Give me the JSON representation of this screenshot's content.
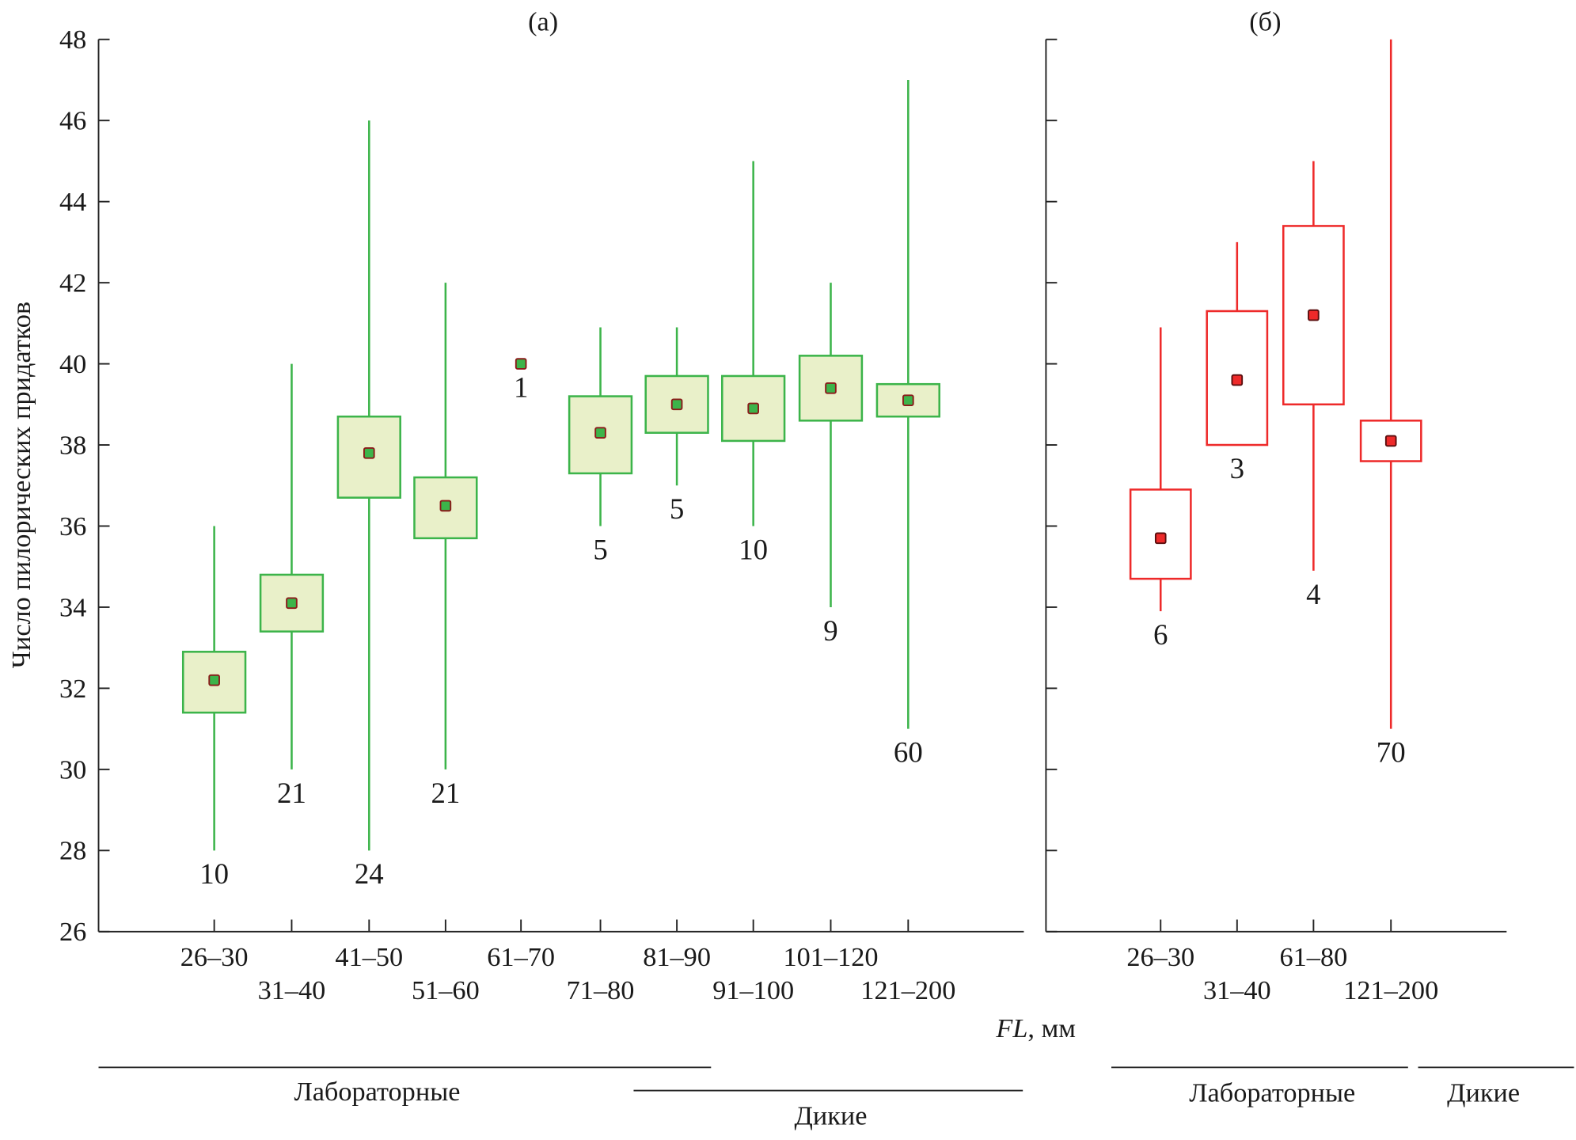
{
  "chart_data": [
    {
      "type": "box",
      "title": "(а)",
      "ylabel": "Число пилорических придатков",
      "xlabel": "FL, мм",
      "xlabel_italic_part": "FL",
      "xlabel_unit": ", мм",
      "ylim": [
        26,
        48
      ],
      "yticks": [
        26,
        28,
        30,
        32,
        34,
        36,
        38,
        40,
        42,
        44,
        46,
        48
      ],
      "colors": {
        "line": "#3cb44a",
        "fill": "#e9f0c9",
        "marker_fill": "#3cb44a",
        "marker_edge": "#8b1a1a"
      },
      "categories": [
        "26–30",
        "31–40",
        "41–50",
        "51–60",
        "61–70",
        "71–80",
        "81–90",
        "91–100",
        "101–120",
        "121–200"
      ],
      "series": [
        {
          "category": "26–30",
          "min": 28,
          "q1": 31.4,
          "mean": 32.2,
          "q3": 32.9,
          "max": 36,
          "n": "10"
        },
        {
          "category": "31–40",
          "min": 30,
          "q1": 33.4,
          "mean": 34.1,
          "q3": 34.8,
          "max": 40,
          "n": "21"
        },
        {
          "category": "41–50",
          "min": 28,
          "q1": 36.7,
          "mean": 37.8,
          "q3": 38.7,
          "max": 46,
          "n": "24"
        },
        {
          "category": "51–60",
          "min": 30,
          "q1": 35.7,
          "mean": 36.5,
          "q3": 37.2,
          "max": 42,
          "n": "21"
        },
        {
          "category": "61–70",
          "min": 40,
          "q1": 40,
          "mean": 40,
          "q3": 40,
          "max": 40,
          "n": "1"
        },
        {
          "category": "71–80",
          "min": 36,
          "q1": 37.3,
          "mean": 38.3,
          "q3": 39.2,
          "max": 40.9,
          "n": "5"
        },
        {
          "category": "81–90",
          "min": 37,
          "q1": 38.3,
          "mean": 39.0,
          "q3": 39.7,
          "max": 40.9,
          "n": "5"
        },
        {
          "category": "91–100",
          "min": 36,
          "q1": 38.1,
          "mean": 38.9,
          "q3": 39.7,
          "max": 45,
          "n": "10"
        },
        {
          "category": "101–120",
          "min": 34,
          "q1": 38.6,
          "mean": 39.4,
          "q3": 40.2,
          "max": 42,
          "n": "9"
        },
        {
          "category": "121–200",
          "min": 31,
          "q1": 38.7,
          "mean": 39.1,
          "q3": 39.5,
          "max": 47,
          "n": "60"
        }
      ],
      "groups": [
        "Лабораторные",
        "Дикие"
      ]
    },
    {
      "type": "box",
      "title": "(б)",
      "ylim": [
        26,
        48
      ],
      "colors": {
        "line": "#ee2a2a",
        "fill": "#ffffff",
        "marker_fill": "#ee2a2a",
        "marker_edge": "#5a0e0e"
      },
      "categories": [
        "26–30",
        "31–40",
        "61–80",
        "121–200"
      ],
      "series": [
        {
          "category": "26–30",
          "min": 33.9,
          "q1": 34.7,
          "mean": 35.7,
          "q3": 36.9,
          "max": 40.9,
          "n": "6"
        },
        {
          "category": "31–40",
          "min": 38.0,
          "q1": 38.0,
          "mean": 39.6,
          "q3": 41.3,
          "max": 43,
          "n": "3"
        },
        {
          "category": "61–80",
          "min": 34.9,
          "q1": 39.0,
          "mean": 41.2,
          "q3": 43.4,
          "max": 45,
          "n": "4"
        },
        {
          "category": "121–200",
          "min": 31,
          "q1": 37.6,
          "mean": 38.1,
          "q3": 38.6,
          "max": 48,
          "n": "70"
        }
      ],
      "groups": [
        "Лабораторные",
        "Дикие"
      ]
    }
  ]
}
